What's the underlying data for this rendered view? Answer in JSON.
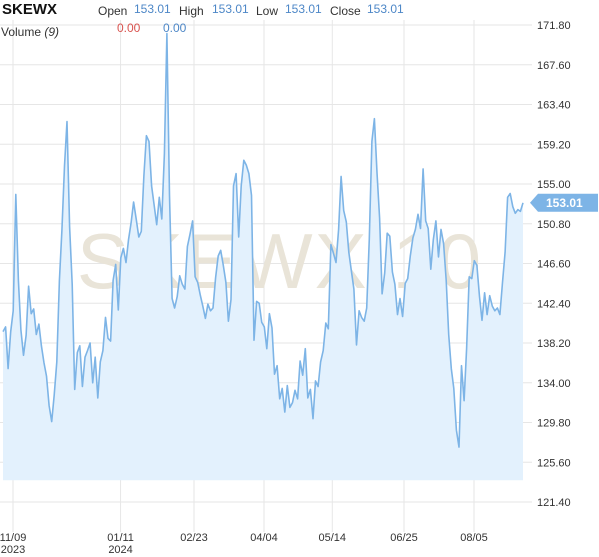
{
  "header": {
    "symbol": "SKEWX",
    "open_label": "Open",
    "open_value": "153.01",
    "high_label": "High",
    "high_value": "153.01",
    "low_label": "Low",
    "low_value": "153.01",
    "close_label": "Close",
    "close_value": "153.01",
    "volume_label": "Volume",
    "volume_period": "(9)",
    "volume_value_1": "0.00",
    "volume_value_2": "0.00"
  },
  "colors": {
    "line": "#7db4e6",
    "fill": "#e3f1fd",
    "grid": "#e6e6e6",
    "badge": "#7db4e6",
    "negative": "#d9534f",
    "value": "#4d87c7"
  },
  "watermark": "SKEWX 10",
  "chart_data": {
    "type": "area",
    "ylim": [
      119.6,
      173.6
    ],
    "y_ticks": [
      "171.80",
      "167.60",
      "163.40",
      "159.20",
      "155.00",
      "150.80",
      "146.60",
      "142.40",
      "138.20",
      "134.00",
      "129.80",
      "125.60",
      "121.40"
    ],
    "x_ticks": [
      {
        "label": "11/09",
        "sub": "2023",
        "date": "2023-11-09"
      },
      {
        "label": "01/11",
        "sub": "2024",
        "date": "2024-01-11"
      },
      {
        "label": "02/23",
        "sub": "",
        "date": "2024-02-23"
      },
      {
        "label": "04/04",
        "sub": "",
        "date": "2024-04-04"
      },
      {
        "label": "05/14",
        "sub": "",
        "date": "2024-05-14"
      },
      {
        "label": "06/25",
        "sub": "",
        "date": "2024-06-25"
      },
      {
        "label": "08/05",
        "sub": "",
        "date": "2024-08-05"
      }
    ],
    "last_price": "153.01",
    "values": [
      139.4,
      139.9,
      135.5,
      139.4,
      141.6,
      153.9,
      144.8,
      139.6,
      136.9,
      139.0,
      144.2,
      141.3,
      141.8,
      139.1,
      140.2,
      137.9,
      136.1,
      134.7,
      131.6,
      129.9,
      132.7,
      136.2,
      144.8,
      150.1,
      156.9,
      161.6,
      150.5,
      144.4,
      133.3,
      137.2,
      137.9,
      133.6,
      136.7,
      137.4,
      138.2,
      134.0,
      136.7,
      132.4,
      136.2,
      137.4,
      140.9,
      138.7,
      138.4,
      144.8,
      146.5,
      141.7,
      147.2,
      148.2,
      146.7,
      149.1,
      150.9,
      153.1,
      151.3,
      149.4,
      150.0,
      155.9,
      160.1,
      159.5,
      154.8,
      152.8,
      150.7,
      153.6,
      151.3,
      158.2,
      170.9,
      153.8,
      142.9,
      141.9,
      143.1,
      145.3,
      144.4,
      143.9,
      148.4,
      149.7,
      151.1,
      145.2,
      144.6,
      143.3,
      142.1,
      140.8,
      142.3,
      141.6,
      141.9,
      145.1,
      147.4,
      148.0,
      146.4,
      144.6,
      140.5,
      142.8,
      154.8,
      156.1,
      149.4,
      154.8,
      157.5,
      157.0,
      156.1,
      153.8,
      138.5,
      142.6,
      142.4,
      140.4,
      139.9,
      137.6,
      141.3,
      139.8,
      134.9,
      135.8,
      132.3,
      133.4,
      130.9,
      133.7,
      131.4,
      131.9,
      133.2,
      132.3,
      136.3,
      134.8,
      137.6,
      132.4,
      133.3,
      130.2,
      134.2,
      133.6,
      136.2,
      137.4,
      140.3,
      139.7,
      148.6,
      147.7,
      146.7,
      150.2,
      155.8,
      152.2,
      151.0,
      147.8,
      145.8,
      143.9,
      138.0,
      141.6,
      140.9,
      140.5,
      141.9,
      149.2,
      159.5,
      161.9,
      156.2,
      151.4,
      143.4,
      145.6,
      149.8,
      149.5,
      145.7,
      144.4,
      141.2,
      142.9,
      141.0,
      144.5,
      145.0,
      147.4,
      149.3,
      150.2,
      151.8,
      150.3,
      156.6,
      151.1,
      150.3,
      146.0,
      149.1,
      151.1,
      147.3,
      150.2,
      148.7,
      144.8,
      139.1,
      135.5,
      133.4,
      129.0,
      127.2,
      135.8,
      132.1,
      137.6,
      145.2,
      145.0,
      146.9,
      146.4,
      143.1,
      140.6,
      143.5,
      141.2,
      143.2,
      142.1,
      141.6,
      141.9,
      141.2,
      144.6,
      147.8,
      153.6,
      154.0,
      152.6,
      151.9,
      152.3,
      152.1,
      153.01
    ]
  }
}
